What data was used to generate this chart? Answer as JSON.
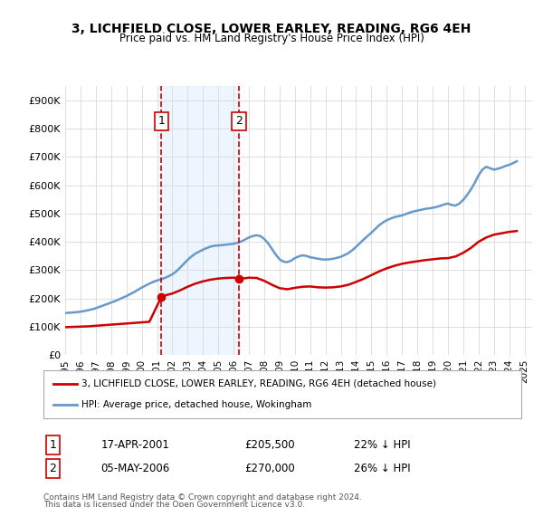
{
  "title": "3, LICHFIELD CLOSE, LOWER EARLEY, READING, RG6 4EH",
  "subtitle": "Price paid vs. HM Land Registry's House Price Index (HPI)",
  "ylabel": "",
  "xlim_left": 1995.0,
  "xlim_right": 2025.5,
  "ylim_bottom": 0,
  "ylim_top": 950000,
  "yticks": [
    0,
    100000,
    200000,
    300000,
    400000,
    500000,
    600000,
    700000,
    800000,
    900000
  ],
  "ytick_labels": [
    "£0",
    "£100K",
    "£200K",
    "£300K",
    "£400K",
    "£500K",
    "£600K",
    "£700K",
    "£800K",
    "£900K"
  ],
  "sale1_x": 2001.29,
  "sale1_y": 205500,
  "sale1_label": "1",
  "sale1_date": "17-APR-2001",
  "sale1_price": "£205,500",
  "sale1_hpi": "22% ↓ HPI",
  "sale2_x": 2006.34,
  "sale2_y": 270000,
  "sale2_label": "2",
  "sale2_date": "05-MAY-2006",
  "sale2_price": "£270,000",
  "sale2_hpi": "26% ↓ HPI",
  "red_line_color": "#cc0000",
  "blue_line_color": "#6699cc",
  "dashed_line_color": "#cc0000",
  "legend_red_label": "3, LICHFIELD CLOSE, LOWER EARLEY, READING, RG6 4EH (detached house)",
  "legend_blue_label": "HPI: Average price, detached house, Wokingham",
  "footer1": "Contains HM Land Registry data © Crown copyright and database right 2024.",
  "footer2": "This data is licensed under the Open Government Licence v3.0.",
  "hpi_x": [
    1995.0,
    1995.25,
    1995.5,
    1995.75,
    1996.0,
    1996.25,
    1996.5,
    1996.75,
    1997.0,
    1997.25,
    1997.5,
    1997.75,
    1998.0,
    1998.25,
    1998.5,
    1998.75,
    1999.0,
    1999.25,
    1999.5,
    1999.75,
    2000.0,
    2000.25,
    2000.5,
    2000.75,
    2001.0,
    2001.25,
    2001.5,
    2001.75,
    2002.0,
    2002.25,
    2002.5,
    2002.75,
    2003.0,
    2003.25,
    2003.5,
    2003.75,
    2004.0,
    2004.25,
    2004.5,
    2004.75,
    2005.0,
    2005.25,
    2005.5,
    2005.75,
    2006.0,
    2006.25,
    2006.5,
    2006.75,
    2007.0,
    2007.25,
    2007.5,
    2007.75,
    2008.0,
    2008.25,
    2008.5,
    2008.75,
    2009.0,
    2009.25,
    2009.5,
    2009.75,
    2010.0,
    2010.25,
    2010.5,
    2010.75,
    2011.0,
    2011.25,
    2011.5,
    2011.75,
    2012.0,
    2012.25,
    2012.5,
    2012.75,
    2013.0,
    2013.25,
    2013.5,
    2013.75,
    2014.0,
    2014.25,
    2014.5,
    2014.75,
    2015.0,
    2015.25,
    2015.5,
    2015.75,
    2016.0,
    2016.25,
    2016.5,
    2016.75,
    2017.0,
    2017.25,
    2017.5,
    2017.75,
    2018.0,
    2018.25,
    2018.5,
    2018.75,
    2019.0,
    2019.25,
    2019.5,
    2019.75,
    2020.0,
    2020.25,
    2020.5,
    2020.75,
    2021.0,
    2021.25,
    2021.5,
    2021.75,
    2022.0,
    2022.25,
    2022.5,
    2022.75,
    2023.0,
    2023.25,
    2023.5,
    2023.75,
    2024.0,
    2024.25,
    2024.5
  ],
  "hpi_y": [
    148000,
    149000,
    150000,
    151000,
    153000,
    155000,
    158000,
    161000,
    165000,
    170000,
    175000,
    180000,
    185000,
    190000,
    196000,
    202000,
    208000,
    215000,
    222000,
    230000,
    238000,
    245000,
    252000,
    258000,
    263000,
    267000,
    272000,
    278000,
    285000,
    295000,
    308000,
    322000,
    336000,
    348000,
    358000,
    365000,
    372000,
    378000,
    383000,
    386000,
    387000,
    388000,
    390000,
    391000,
    393000,
    396000,
    401000,
    408000,
    415000,
    420000,
    423000,
    420000,
    410000,
    395000,
    375000,
    355000,
    338000,
    330000,
    328000,
    333000,
    342000,
    348000,
    352000,
    350000,
    345000,
    343000,
    340000,
    338000,
    337000,
    338000,
    340000,
    343000,
    347000,
    353000,
    360000,
    370000,
    382000,
    395000,
    408000,
    420000,
    432000,
    445000,
    458000,
    468000,
    476000,
    482000,
    487000,
    490000,
    493000,
    498000,
    503000,
    507000,
    510000,
    513000,
    516000,
    518000,
    520000,
    523000,
    527000,
    532000,
    535000,
    530000,
    528000,
    535000,
    548000,
    565000,
    585000,
    608000,
    635000,
    655000,
    665000,
    660000,
    655000,
    658000,
    662000,
    668000,
    672000,
    678000,
    685000
  ],
  "red_x": [
    1995.0,
    1995.5,
    1996.0,
    1996.5,
    1997.0,
    1997.5,
    1998.0,
    1998.5,
    1999.0,
    1999.5,
    2000.0,
    2000.5,
    2001.29,
    2001.5,
    2002.0,
    2002.5,
    2003.0,
    2003.5,
    2004.0,
    2004.5,
    2005.0,
    2005.5,
    2006.0,
    2006.34,
    2006.75,
    2007.0,
    2007.5,
    2008.0,
    2008.5,
    2009.0,
    2009.5,
    2010.0,
    2010.5,
    2011.0,
    2011.5,
    2012.0,
    2012.5,
    2013.0,
    2013.5,
    2014.0,
    2014.5,
    2015.0,
    2015.5,
    2016.0,
    2016.5,
    2017.0,
    2017.5,
    2018.0,
    2018.5,
    2019.0,
    2019.5,
    2020.0,
    2020.5,
    2021.0,
    2021.5,
    2022.0,
    2022.5,
    2023.0,
    2023.5,
    2024.0,
    2024.5
  ],
  "red_y": [
    98000,
    99000,
    100000,
    101000,
    103000,
    105000,
    107000,
    109000,
    111000,
    113000,
    115000,
    117000,
    205500,
    210000,
    217000,
    228000,
    241000,
    252000,
    260000,
    266000,
    270000,
    272000,
    273000,
    270000,
    271000,
    273000,
    272000,
    262000,
    248000,
    236000,
    232000,
    237000,
    241000,
    242000,
    239000,
    238000,
    239000,
    242000,
    248000,
    258000,
    269000,
    282000,
    295000,
    306000,
    315000,
    322000,
    327000,
    331000,
    335000,
    338000,
    341000,
    342000,
    348000,
    361000,
    378000,
    400000,
    415000,
    425000,
    430000,
    435000,
    438000
  ],
  "background_color": "#ffffff",
  "plot_bg_color": "#ffffff",
  "grid_color": "#dddddd",
  "shade_color": "#ddeeff",
  "shade_alpha": 0.5
}
